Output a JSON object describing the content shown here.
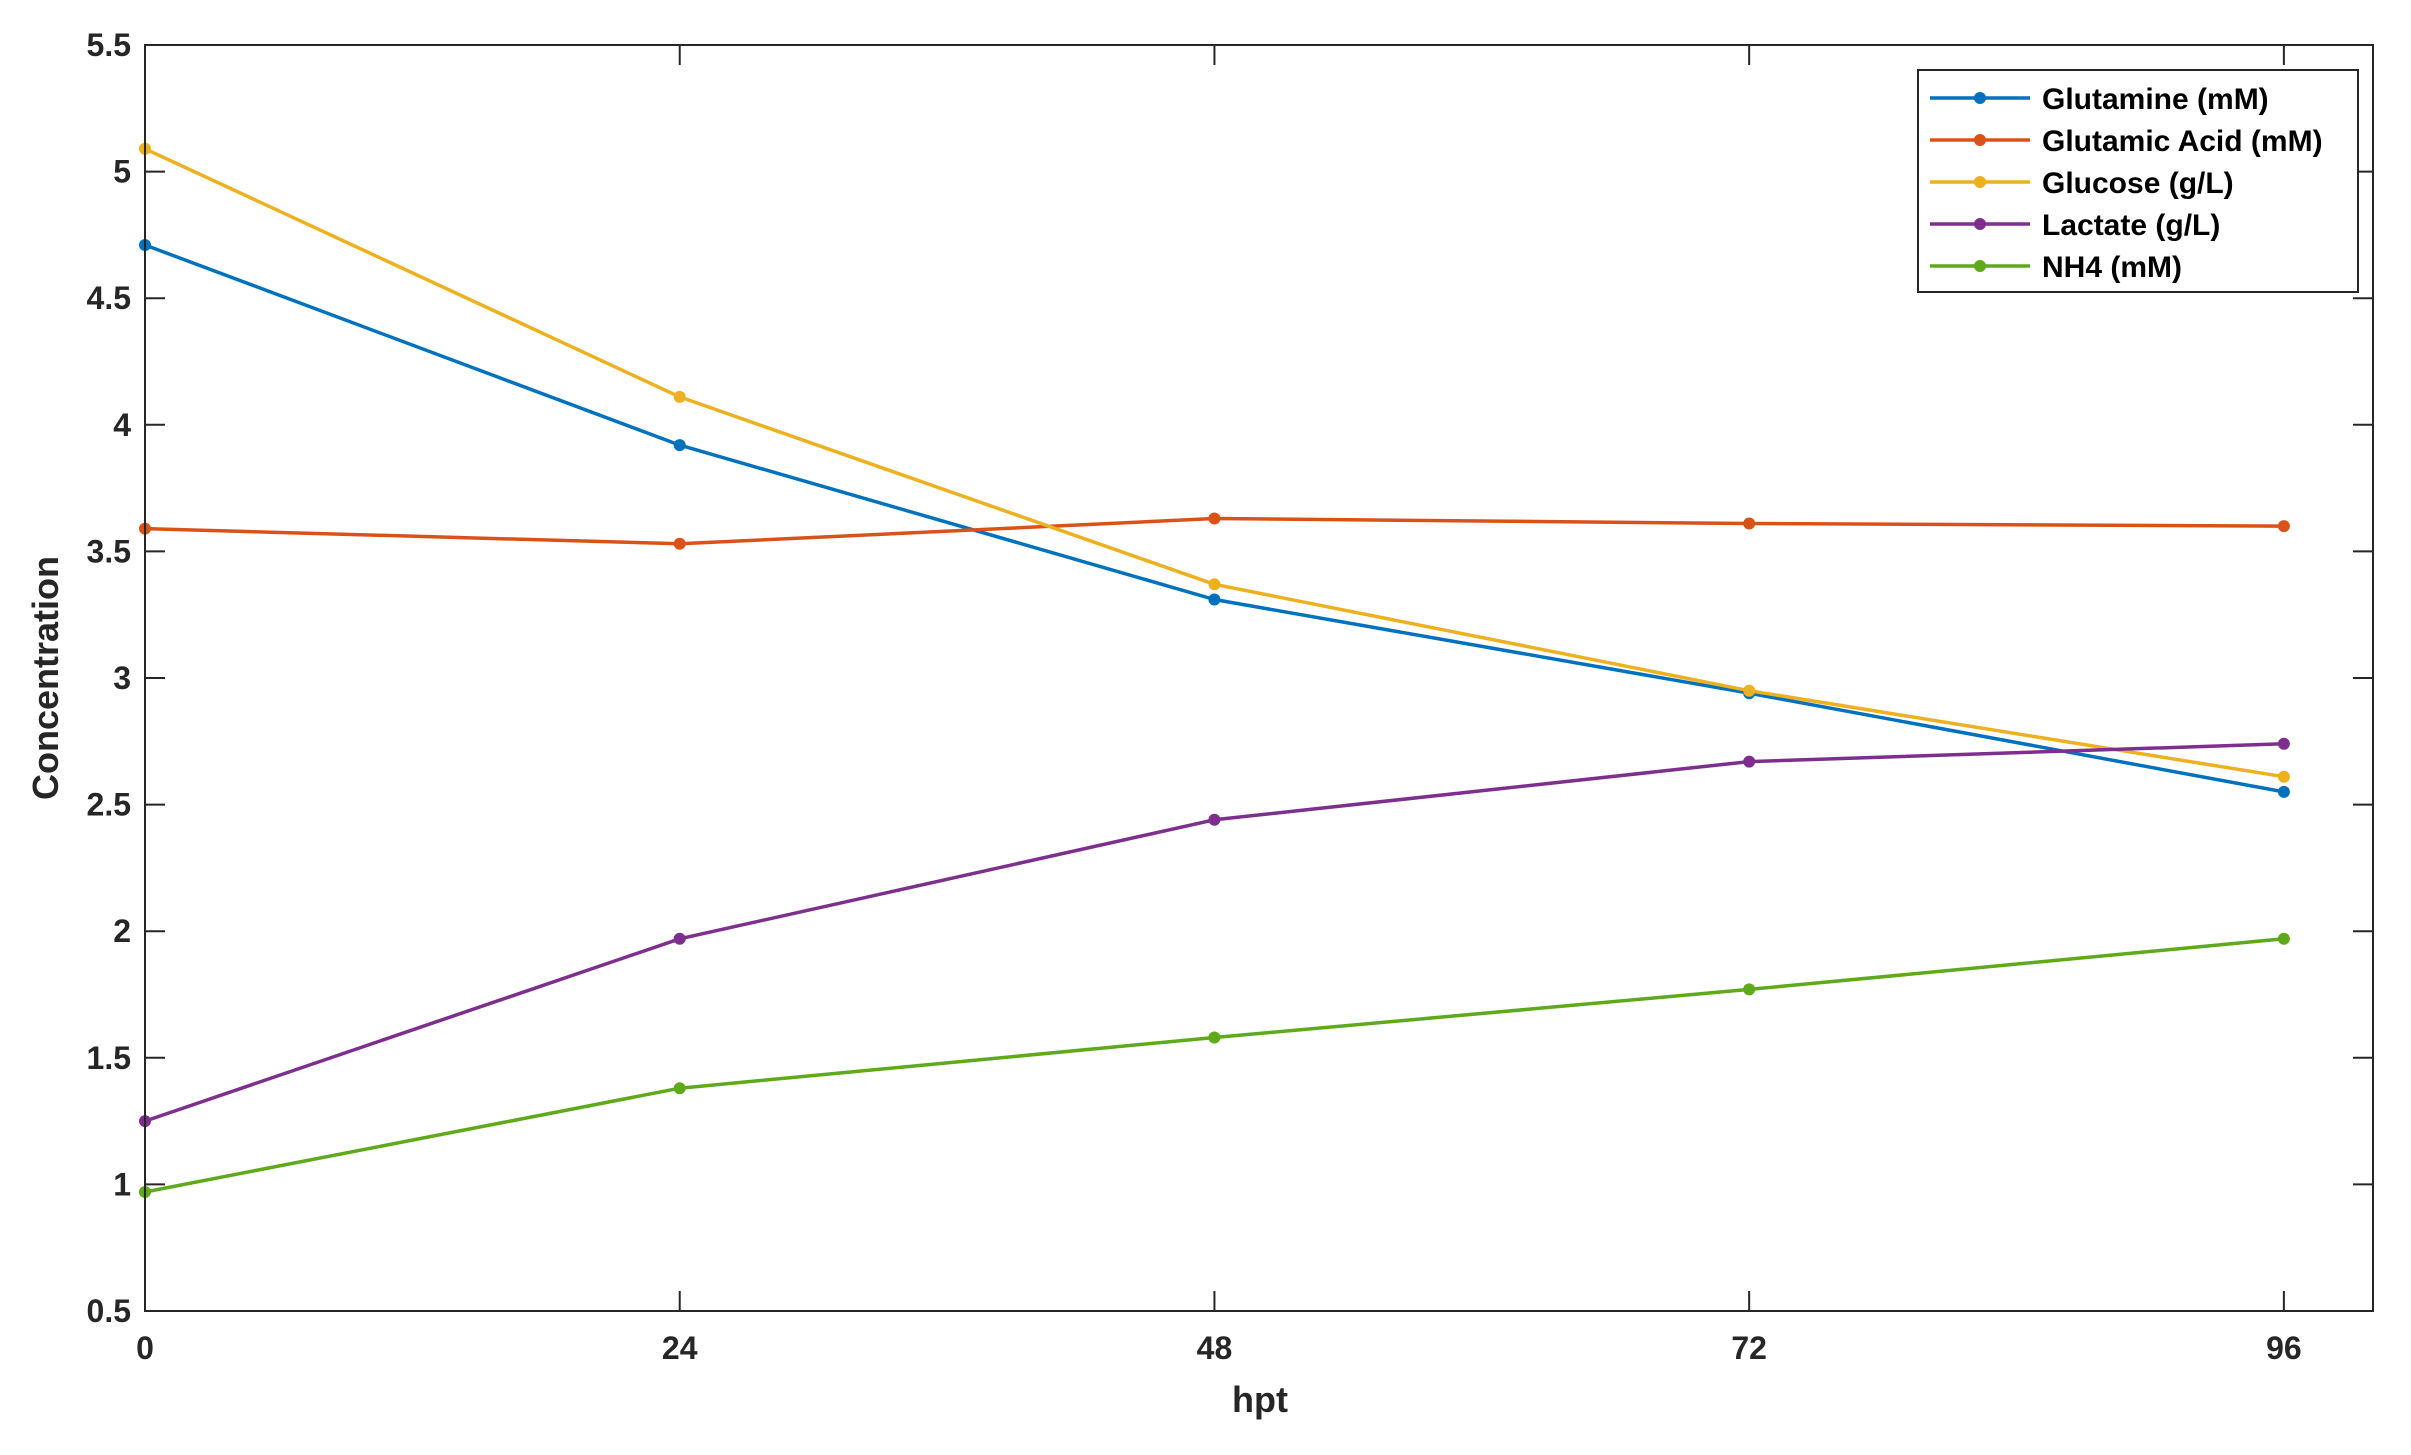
{
  "chart_data": {
    "type": "line",
    "title": "",
    "xlabel": "hpt",
    "ylabel": "Concentration",
    "xlim": [
      0,
      100
    ],
    "ylim": [
      0.5,
      5.5
    ],
    "xticks": [
      0,
      24,
      48,
      72,
      96
    ],
    "yticks": [
      0.5,
      1,
      1.5,
      2,
      2.5,
      3,
      3.5,
      4,
      4.5,
      5,
      5.5
    ],
    "xtick_labels": [
      "0",
      "24",
      "48",
      "72",
      "96"
    ],
    "ytick_labels": [
      "0.5",
      "1",
      "1.5",
      "2",
      "2.5",
      "3",
      "3.5",
      "4",
      "4.5",
      "5",
      "5.5"
    ],
    "grid": false,
    "legend_position": "top-right",
    "x": [
      0,
      24,
      48,
      72,
      96
    ],
    "series": [
      {
        "name": "Glutamine (mM)",
        "color": "#0072BD",
        "values": [
          4.71,
          3.92,
          3.31,
          2.94,
          2.55
        ]
      },
      {
        "name": "Glutamic Acid (mM)",
        "color": "#D95319",
        "values": [
          3.59,
          3.53,
          3.63,
          3.61,
          3.6
        ]
      },
      {
        "name": "Glucose (g/L)",
        "color": "#EDB120",
        "values": [
          5.09,
          4.11,
          3.37,
          2.95,
          2.61
        ]
      },
      {
        "name": "Lactate (g/L)",
        "color": "#7E2F8E",
        "values": [
          1.25,
          1.97,
          2.44,
          2.67,
          2.74
        ]
      },
      {
        "name": "NH4 (mM)",
        "color": "#5EAA1A",
        "values": [
          0.97,
          1.38,
          1.58,
          1.77,
          1.97
        ]
      }
    ]
  }
}
